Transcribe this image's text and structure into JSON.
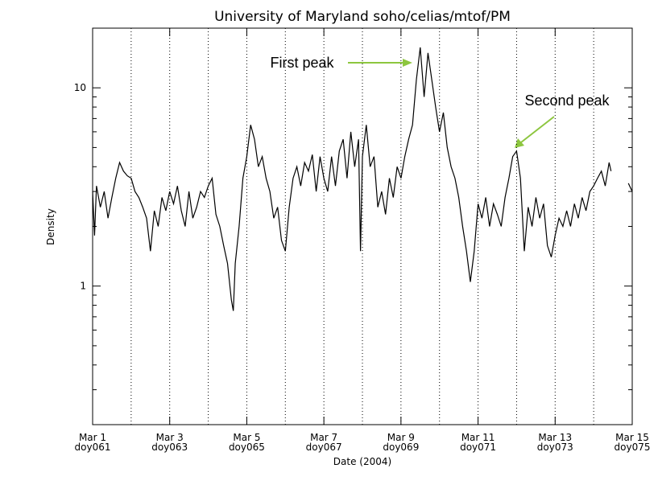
{
  "chart_data": {
    "type": "line",
    "title": "University of Maryland  soho/celias/mtof/PM",
    "y_label": "Density",
    "x_label": "Date (2004)",
    "log_y": true,
    "xlim": [
      61,
      75
    ],
    "xticks": [
      {
        "value": 61,
        "label": [
          "Mar 1",
          "doy061"
        ]
      },
      {
        "value": 63,
        "label": [
          "Mar 3",
          "doy063"
        ]
      },
      {
        "value": 65,
        "label": [
          "Mar 5",
          "doy065"
        ]
      },
      {
        "value": 67,
        "label": [
          "Mar 7",
          "doy067"
        ]
      },
      {
        "value": 69,
        "label": [
          "Mar 9",
          "doy069"
        ]
      },
      {
        "value": 71,
        "label": [
          "Mar 11",
          "doy071"
        ]
      },
      {
        "value": 73,
        "label": [
          "Mar 13",
          "doy073"
        ]
      },
      {
        "value": 75,
        "label": [
          "Mar 15",
          "doy075"
        ]
      }
    ],
    "xgrid": [
      62,
      63,
      64,
      65,
      66,
      67,
      68,
      69,
      70,
      71,
      72,
      73,
      74
    ],
    "ylim": [
      0.2,
      20
    ],
    "yticks": [
      1,
      10
    ],
    "yminor": [
      0.3,
      0.4,
      0.5,
      0.6,
      0.7,
      0.8,
      0.9,
      2,
      3,
      4,
      5,
      6,
      7,
      8,
      9
    ],
    "annotations": [
      "First peak",
      "Second peak"
    ],
    "annotation_color": "#8dc63f",
    "series": [
      {
        "color": "#000000",
        "x": [
          61.0,
          61.05,
          61.1,
          61.2,
          61.3,
          61.4,
          61.5,
          61.6,
          61.7,
          61.8,
          61.9,
          62.0,
          62.1,
          62.2,
          62.3,
          62.4,
          62.5,
          62.6,
          62.7,
          62.8,
          62.9,
          63.0,
          63.1,
          63.2,
          63.3,
          63.4,
          63.5,
          63.6,
          63.7,
          63.8,
          63.9,
          64.0,
          64.1,
          64.2,
          64.3,
          64.4,
          64.5,
          64.6,
          64.65,
          64.7,
          64.8,
          64.9,
          65.0,
          65.1,
          65.2,
          65.3,
          65.4,
          65.5,
          65.6,
          65.7,
          65.8,
          65.9,
          66.0,
          66.1,
          66.2,
          66.3,
          66.4,
          66.5,
          66.6,
          66.7,
          66.8,
          66.9,
          67.0,
          67.1,
          67.2,
          67.3,
          67.4,
          67.5,
          67.6,
          67.7,
          67.8,
          67.9,
          67.95,
          68.0,
          68.1,
          68.2,
          68.3,
          68.4,
          68.5,
          68.6,
          68.7,
          68.8,
          68.9,
          69.0,
          69.1,
          69.2,
          69.3,
          69.4,
          69.5,
          69.55,
          69.6,
          69.7,
          69.8,
          69.9,
          70.0,
          70.1,
          70.2,
          70.3,
          70.4,
          70.5,
          70.6,
          70.7,
          70.8,
          70.9,
          71.0,
          71.1,
          71.2,
          71.3,
          71.4,
          71.5,
          71.6,
          71.7,
          71.8,
          71.9,
          72.0,
          72.1,
          72.2,
          72.3,
          72.4,
          72.5,
          72.6,
          72.7,
          72.8,
          72.9,
          73.0,
          73.1,
          73.2,
          73.3,
          73.4,
          73.5,
          73.6,
          73.7,
          73.8,
          73.9,
          74.0,
          74.1,
          74.2,
          74.3,
          74.4,
          74.45,
          74.7,
          74.9,
          75.0
        ],
        "values": [
          3.0,
          1.8,
          3.2,
          2.5,
          3.0,
          2.2,
          2.8,
          3.5,
          4.2,
          3.8,
          3.6,
          3.5,
          3.0,
          2.8,
          2.5,
          2.2,
          1.5,
          2.4,
          2.0,
          2.8,
          2.4,
          3.0,
          2.6,
          3.2,
          2.4,
          2.0,
          3.0,
          2.2,
          2.5,
          3.0,
          2.8,
          3.2,
          3.5,
          2.3,
          2.0,
          1.6,
          1.3,
          0.85,
          0.75,
          1.3,
          2.0,
          3.5,
          4.5,
          6.5,
          5.5,
          4.0,
          4.5,
          3.5,
          3.0,
          2.2,
          2.5,
          1.7,
          1.5,
          2.5,
          3.5,
          4.0,
          3.2,
          4.2,
          3.8,
          4.6,
          3.0,
          4.5,
          3.5,
          3.0,
          4.5,
          3.2,
          4.8,
          5.5,
          3.5,
          6.0,
          4.0,
          5.5,
          1.5,
          4.5,
          6.5,
          4.0,
          4.5,
          2.5,
          3.0,
          2.3,
          3.5,
          2.8,
          4.0,
          3.5,
          4.5,
          5.5,
          6.5,
          11,
          16,
          12,
          9,
          15,
          11,
          8,
          6.0,
          7.5,
          5.0,
          4.0,
          3.5,
          2.8,
          2.0,
          1.5,
          1.05,
          1.5,
          2.6,
          2.2,
          2.8,
          2.0,
          2.6,
          2.3,
          2.0,
          2.8,
          3.5,
          4.5,
          4.8,
          3.5,
          1.5,
          2.5,
          2.0,
          2.8,
          2.2,
          2.6,
          1.6,
          1.4,
          1.8,
          2.2,
          2.0,
          2.4,
          2.0,
          2.6,
          2.2,
          2.8,
          2.4,
          3.0,
          3.2,
          3.5,
          3.8,
          3.2,
          4.2,
          3.8,
          null,
          3.3,
          3.0
        ]
      }
    ]
  }
}
